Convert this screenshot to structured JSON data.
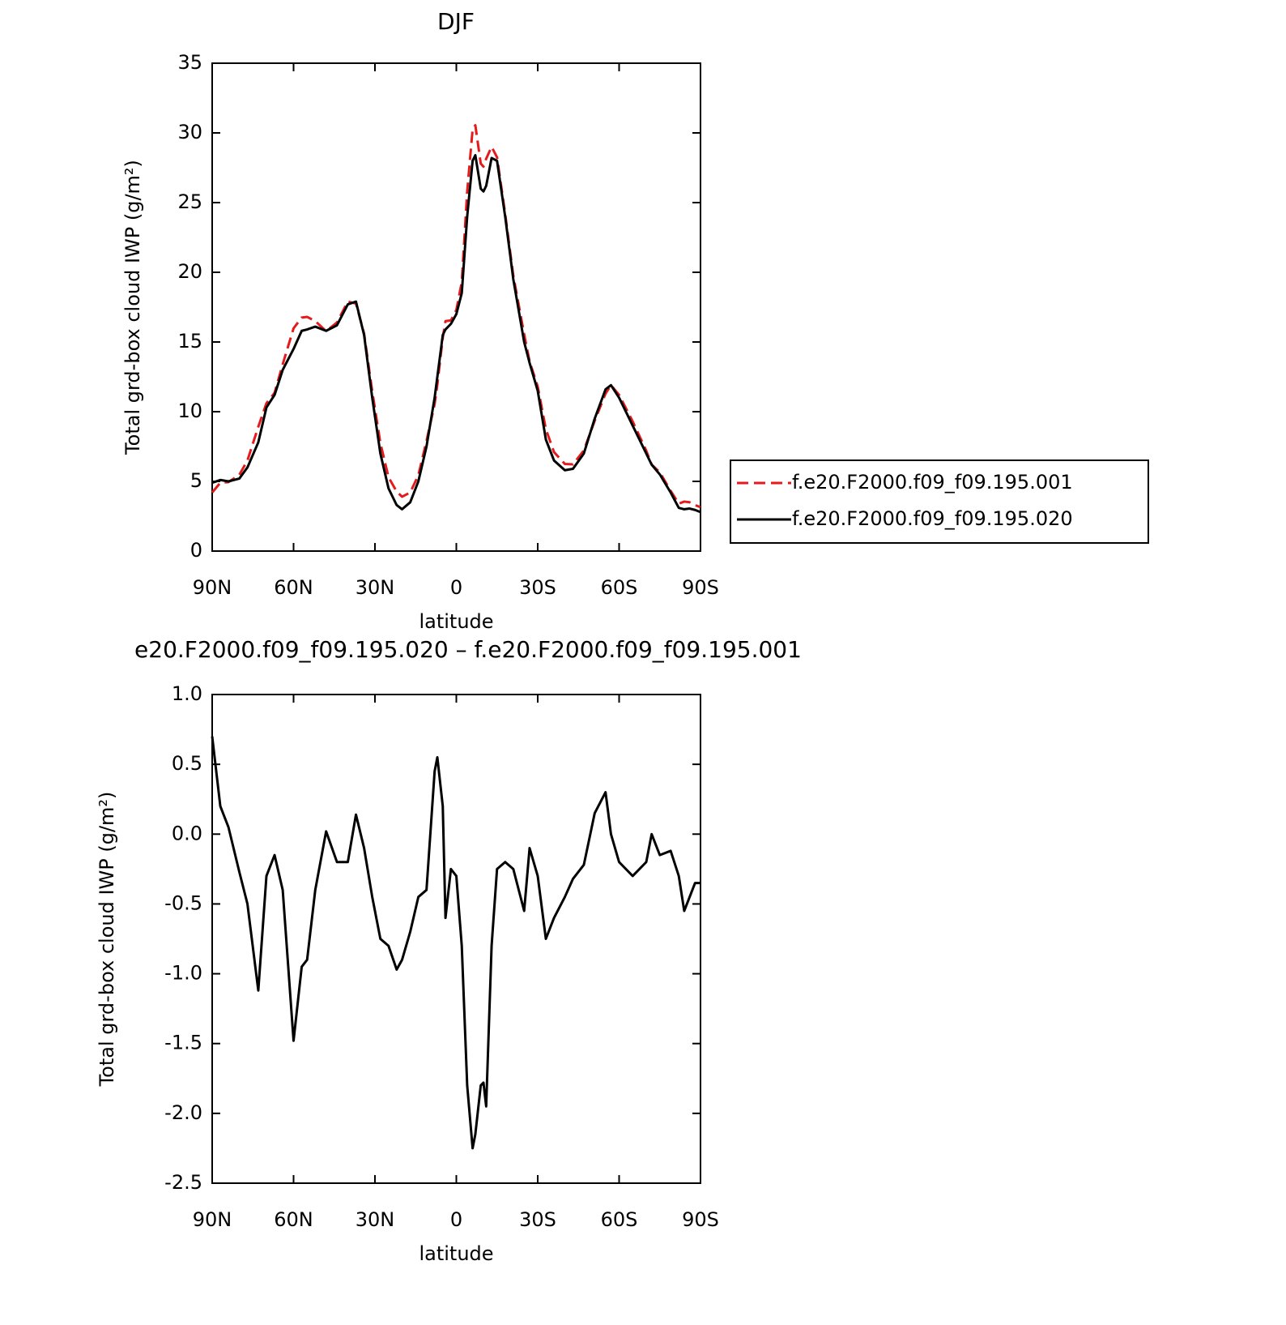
{
  "chart_data": [
    {
      "type": "line",
      "title": "DJF",
      "x_label": "latitude",
      "y_label": "Total grd-box cloud IWP (g/m²)",
      "x": [
        90,
        87,
        84,
        80,
        77,
        73,
        70,
        67,
        64,
        60,
        57,
        55,
        52,
        48,
        44,
        40,
        37,
        34,
        31,
        28,
        25,
        22,
        20,
        17,
        14,
        11,
        8,
        7,
        5,
        4,
        2,
        0,
        -2,
        -4,
        -6,
        -7,
        -9,
        -10,
        -11,
        -13,
        -15,
        -18,
        -21,
        -25,
        -27,
        -30,
        -33,
        -36,
        -40,
        -43,
        -47,
        -51,
        -55,
        -57,
        -60,
        -65,
        -70,
        -72,
        -75,
        -79,
        -82,
        -84,
        -86,
        -88,
        -90
      ],
      "series": [
        {
          "name": "f.e20.F2000.f09_f09.195.001",
          "color": "#e41a1c",
          "dash": true,
          "values": [
            4.2,
            4.9,
            4.95,
            5.47,
            6.5,
            8.92,
            10.6,
            11.35,
            13.4,
            15.98,
            16.75,
            16.8,
            16.5,
            15.78,
            16.4,
            17.9,
            17.76,
            15.6,
            11.45,
            7.75,
            5.3,
            4.27,
            3.9,
            4.2,
            5.45,
            7.9,
            10.55,
            11.95,
            15.3,
            16.5,
            16.55,
            17.3,
            19.3,
            25.8,
            30.25,
            30.55,
            27.8,
            27.58,
            28.15,
            29.0,
            28.25,
            24.2,
            19.75,
            15.55,
            13.6,
            11.8,
            8.75,
            7.1,
            6.25,
            6.22,
            7.22,
            9.35,
            11.3,
            11.9,
            11.2,
            9.3,
            7.2,
            6.2,
            5.65,
            4.32,
            3.4,
            3.55,
            3.5,
            3.3,
            3.15
          ]
        },
        {
          "name": "f.e20.F2000.f09_f09.195.020",
          "color": "#000000",
          "dash": false,
          "values": [
            4.9,
            5.1,
            5.0,
            5.2,
            6.0,
            7.8,
            10.3,
            11.2,
            13.0,
            14.5,
            15.8,
            15.9,
            16.1,
            15.8,
            16.2,
            17.7,
            17.9,
            15.5,
            11,
            7,
            4.5,
            3.3,
            3.0,
            3.5,
            5,
            7.5,
            11,
            12.5,
            15.5,
            15.9,
            16.3,
            17,
            18.5,
            24,
            28,
            28.4,
            26,
            25.8,
            26.2,
            28.2,
            28,
            24,
            19.5,
            15,
            13.5,
            11.5,
            8,
            6.5,
            5.8,
            5.9,
            7,
            9.5,
            11.6,
            11.9,
            11,
            9,
            7,
            6.2,
            5.5,
            4.2,
            3.1,
            3.0,
            3.05,
            2.95,
            2.8
          ]
        }
      ],
      "xlim": [
        90,
        -90
      ],
      "xticks": [
        {
          "value": 90,
          "label": "90N"
        },
        {
          "value": 60,
          "label": "60N"
        },
        {
          "value": 30,
          "label": "30N"
        },
        0,
        {
          "value": -30,
          "label": "30S"
        },
        {
          "value": -60,
          "label": "60S"
        },
        {
          "value": -90,
          "label": "90S"
        }
      ],
      "ylim": [
        0,
        35
      ],
      "yticks": [
        0,
        5,
        10,
        15,
        20,
        25,
        30,
        35
      ],
      "legend": "right"
    },
    {
      "type": "line",
      "title": "e20.F2000.f09_f09.195.020 – f.e20.F2000.f09_f09.195.001",
      "x_label": "latitude",
      "y_label": "Total grd-box cloud IWP (g/m²)",
      "x": [
        90,
        87,
        84,
        80,
        77,
        73,
        70,
        67,
        64,
        60,
        57,
        55,
        52,
        48,
        44,
        40,
        37,
        34,
        31,
        28,
        25,
        22,
        20,
        17,
        14,
        11,
        8,
        7,
        5,
        4,
        2,
        0,
        -2,
        -4,
        -6,
        -7,
        -9,
        -10,
        -11,
        -13,
        -15,
        -18,
        -21,
        -25,
        -27,
        -30,
        -33,
        -36,
        -40,
        -43,
        -47,
        -51,
        -55,
        -57,
        -60,
        -65,
        -70,
        -72,
        -75,
        -79,
        -82,
        -84,
        -86,
        -88,
        -90
      ],
      "color": "#000000",
      "values": [
        0.7,
        0.2,
        0.05,
        -0.27,
        -0.5,
        -1.12,
        -0.3,
        -0.15,
        -0.4,
        -1.48,
        -0.95,
        -0.9,
        -0.4,
        0.02,
        -0.2,
        -0.2,
        0.14,
        -0.1,
        -0.45,
        -0.75,
        -0.8,
        -0.97,
        -0.9,
        -0.7,
        -0.45,
        -0.4,
        0.45,
        0.55,
        0.2,
        -0.6,
        -0.25,
        -0.3,
        -0.8,
        -1.8,
        -2.25,
        -2.15,
        -1.8,
        -1.78,
        -1.95,
        -0.8,
        -0.25,
        -0.2,
        -0.25,
        -0.55,
        -0.1,
        -0.3,
        -0.75,
        -0.6,
        -0.45,
        -0.32,
        -0.22,
        0.15,
        0.3,
        0.0,
        -0.2,
        -0.3,
        -0.2,
        0.0,
        -0.15,
        -0.12,
        -0.3,
        -0.55,
        -0.45,
        -0.35,
        -0.35
      ],
      "xlim": [
        90,
        -90
      ],
      "xticks": [
        {
          "value": 90,
          "label": "90N"
        },
        {
          "value": 60,
          "label": "60N"
        },
        {
          "value": 30,
          "label": "30N"
        },
        0,
        {
          "value": -30,
          "label": "30S"
        },
        {
          "value": -60,
          "label": "60S"
        },
        {
          "value": -90,
          "label": "90S"
        }
      ],
      "ylim": [
        -2.5,
        1
      ],
      "yticks": [
        -2.5,
        {
          "value": -2,
          "label": "-2.0"
        },
        -1.5,
        {
          "value": -1,
          "label": "-1.0"
        },
        -0.5,
        {
          "value": 0,
          "label": "0.0"
        },
        0.5,
        {
          "value": 1,
          "label": "1.0"
        }
      ]
    }
  ]
}
